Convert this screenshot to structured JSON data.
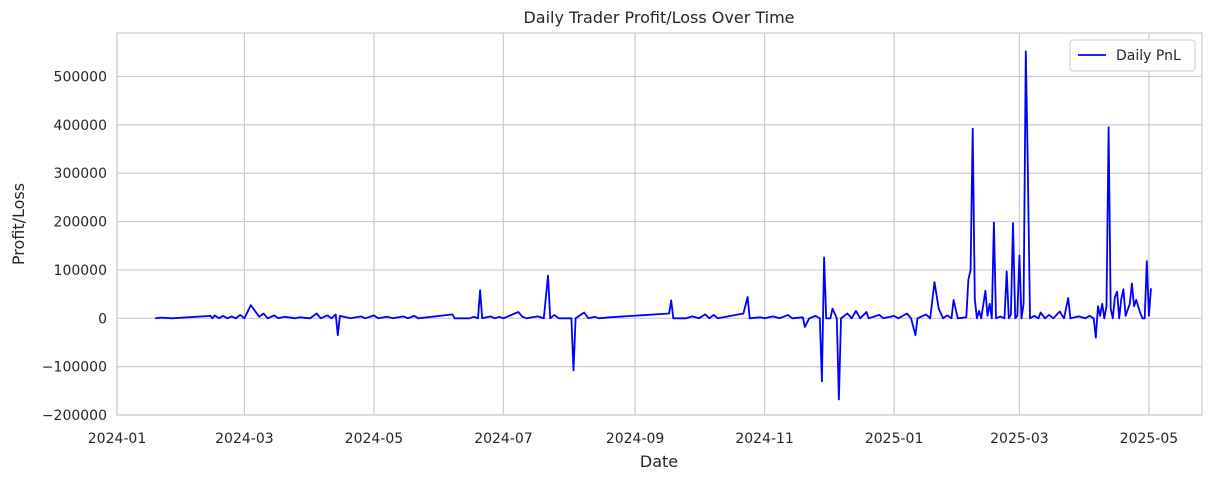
{
  "chart_data": {
    "type": "line",
    "title": "Daily Trader Profit/Loss Over Time",
    "xlabel": "Date",
    "ylabel": "Profit/Loss",
    "xlim": [
      "2024-01-01",
      "2025-05-26"
    ],
    "ylim": [
      -200000,
      590000
    ],
    "x_ticks": [
      "2024-01",
      "2024-03",
      "2024-05",
      "2024-07",
      "2024-09",
      "2024-11",
      "2025-01",
      "2025-03",
      "2025-05"
    ],
    "y_ticks": [
      -200000,
      -100000,
      0,
      100000,
      200000,
      300000,
      400000,
      500000
    ],
    "y_tick_labels": [
      "−200000",
      "−100000",
      "0",
      "100000",
      "200000",
      "300000",
      "400000",
      "500000"
    ],
    "grid": true,
    "legend_position": "top-right",
    "colors": {
      "line": "#0000ff",
      "grid": "#cccccc",
      "frame": "#cccccc"
    },
    "series": [
      {
        "name": "Daily PnL",
        "points": [
          [
            "2024-01-19",
            0
          ],
          [
            "2024-01-22",
            1500
          ],
          [
            "2024-01-27",
            0
          ],
          [
            "2024-02-14",
            5000
          ],
          [
            "2024-02-15",
            0
          ],
          [
            "2024-02-16",
            6000
          ],
          [
            "2024-02-18",
            0
          ],
          [
            "2024-02-20",
            5000
          ],
          [
            "2024-02-22",
            0
          ],
          [
            "2024-02-24",
            4000
          ],
          [
            "2024-02-26",
            0
          ],
          [
            "2024-02-28",
            7000
          ],
          [
            "2024-03-01",
            0
          ],
          [
            "2024-03-04",
            27000
          ],
          [
            "2024-03-06",
            15000
          ],
          [
            "2024-03-08",
            3000
          ],
          [
            "2024-03-10",
            10000
          ],
          [
            "2024-03-12",
            0
          ],
          [
            "2024-03-15",
            6000
          ],
          [
            "2024-03-17",
            0
          ],
          [
            "2024-03-20",
            3000
          ],
          [
            "2024-03-25",
            0
          ],
          [
            "2024-03-27",
            2000
          ],
          [
            "2024-04-01",
            0
          ],
          [
            "2024-04-04",
            10000
          ],
          [
            "2024-04-06",
            0
          ],
          [
            "2024-04-09",
            6000
          ],
          [
            "2024-04-11",
            0
          ],
          [
            "2024-04-13",
            8000
          ],
          [
            "2024-04-14",
            -35000
          ],
          [
            "2024-04-15",
            5000
          ],
          [
            "2024-04-20",
            0
          ],
          [
            "2024-04-25",
            4000
          ],
          [
            "2024-04-27",
            0
          ],
          [
            "2024-05-01",
            6000
          ],
          [
            "2024-05-03",
            0
          ],
          [
            "2024-05-07",
            3000
          ],
          [
            "2024-05-10",
            0
          ],
          [
            "2024-05-15",
            4000
          ],
          [
            "2024-05-17",
            0
          ],
          [
            "2024-05-20",
            5000
          ],
          [
            "2024-05-22",
            0
          ],
          [
            "2024-06-07",
            8000
          ],
          [
            "2024-06-08",
            0
          ],
          [
            "2024-06-15",
            0
          ],
          [
            "2024-06-17",
            3000
          ],
          [
            "2024-06-19",
            0
          ],
          [
            "2024-06-20",
            58000
          ],
          [
            "2024-06-21",
            0
          ],
          [
            "2024-06-25",
            4000
          ],
          [
            "2024-06-27",
            0
          ],
          [
            "2024-06-29",
            3000
          ],
          [
            "2024-07-01",
            0
          ],
          [
            "2024-07-08",
            13000
          ],
          [
            "2024-07-10",
            3000
          ],
          [
            "2024-07-12",
            0
          ],
          [
            "2024-07-17",
            4000
          ],
          [
            "2024-07-20",
            0
          ],
          [
            "2024-07-22",
            88000
          ],
          [
            "2024-07-23",
            0
          ],
          [
            "2024-07-25",
            7000
          ],
          [
            "2024-07-27",
            0
          ],
          [
            "2024-08-02",
            0
          ],
          [
            "2024-08-03",
            -108000
          ],
          [
            "2024-08-04",
            0
          ],
          [
            "2024-08-08",
            12000
          ],
          [
            "2024-08-10",
            0
          ],
          [
            "2024-08-13",
            3000
          ],
          [
            "2024-08-15",
            0
          ],
          [
            "2024-08-20",
            2000
          ],
          [
            "2024-09-17",
            10000
          ],
          [
            "2024-09-18",
            37000
          ],
          [
            "2024-09-19",
            0
          ],
          [
            "2024-09-25",
            0
          ],
          [
            "2024-09-28",
            4000
          ],
          [
            "2024-10-01",
            0
          ],
          [
            "2024-10-04",
            8000
          ],
          [
            "2024-10-06",
            0
          ],
          [
            "2024-10-08",
            7000
          ],
          [
            "2024-10-10",
            0
          ],
          [
            "2024-10-22",
            10000
          ],
          [
            "2024-10-24",
            44000
          ],
          [
            "2024-10-25",
            0
          ],
          [
            "2024-10-30",
            2000
          ],
          [
            "2024-11-01",
            0
          ],
          [
            "2024-11-05",
            4000
          ],
          [
            "2024-11-08",
            0
          ],
          [
            "2024-11-12",
            7000
          ],
          [
            "2024-11-14",
            0
          ],
          [
            "2024-11-19",
            2000
          ],
          [
            "2024-11-20",
            -18000
          ],
          [
            "2024-11-22",
            0
          ],
          [
            "2024-11-25",
            5000
          ],
          [
            "2024-11-27",
            0
          ],
          [
            "2024-11-28",
            -130000
          ],
          [
            "2024-11-29",
            126000
          ],
          [
            "2024-11-30",
            0
          ],
          [
            "2024-12-02",
            0
          ],
          [
            "2024-12-03",
            20000
          ],
          [
            "2024-12-05",
            0
          ],
          [
            "2024-12-06",
            -168000
          ],
          [
            "2024-12-07",
            0
          ],
          [
            "2024-12-10",
            10000
          ],
          [
            "2024-12-12",
            0
          ],
          [
            "2024-12-14",
            15000
          ],
          [
            "2024-12-16",
            0
          ],
          [
            "2024-12-19",
            13000
          ],
          [
            "2024-12-20",
            0
          ],
          [
            "2024-12-25",
            7000
          ],
          [
            "2024-12-27",
            0
          ],
          [
            "2025-01-01",
            5000
          ],
          [
            "2025-01-03",
            0
          ],
          [
            "2025-01-07",
            10000
          ],
          [
            "2025-01-09",
            0
          ],
          [
            "2025-01-11",
            -35000
          ],
          [
            "2025-01-12",
            0
          ],
          [
            "2025-01-16",
            8000
          ],
          [
            "2025-01-18",
            0
          ],
          [
            "2025-01-20",
            75000
          ],
          [
            "2025-01-22",
            20000
          ],
          [
            "2025-01-24",
            0
          ],
          [
            "2025-01-26",
            6000
          ],
          [
            "2025-01-28",
            0
          ],
          [
            "2025-01-29",
            38000
          ],
          [
            "2025-01-31",
            0
          ],
          [
            "2025-02-04",
            2000
          ],
          [
            "2025-02-05",
            80000
          ],
          [
            "2025-02-06",
            100000
          ],
          [
            "2025-02-07",
            392000
          ],
          [
            "2025-02-08",
            40000
          ],
          [
            "2025-02-09",
            0
          ],
          [
            "2025-02-10",
            15000
          ],
          [
            "2025-02-11",
            0
          ],
          [
            "2025-02-13",
            57000
          ],
          [
            "2025-02-14",
            5000
          ],
          [
            "2025-02-15",
            30000
          ],
          [
            "2025-02-16",
            0
          ],
          [
            "2025-02-17",
            198000
          ],
          [
            "2025-02-18",
            0
          ],
          [
            "2025-02-20",
            4000
          ],
          [
            "2025-02-22",
            0
          ],
          [
            "2025-02-23",
            97000
          ],
          [
            "2025-02-24",
            0
          ],
          [
            "2025-02-25",
            8000
          ],
          [
            "2025-02-26",
            197000
          ],
          [
            "2025-02-27",
            0
          ],
          [
            "2025-02-28",
            5000
          ],
          [
            "2025-03-01",
            130000
          ],
          [
            "2025-03-02",
            0
          ],
          [
            "2025-03-03",
            30000
          ],
          [
            "2025-03-04",
            552000
          ],
          [
            "2025-03-05",
            300000
          ],
          [
            "2025-03-06",
            0
          ],
          [
            "2025-03-08",
            5000
          ],
          [
            "2025-03-10",
            0
          ],
          [
            "2025-03-11",
            12000
          ],
          [
            "2025-03-13",
            0
          ],
          [
            "2025-03-15",
            7000
          ],
          [
            "2025-03-17",
            0
          ],
          [
            "2025-03-20",
            14000
          ],
          [
            "2025-03-22",
            0
          ],
          [
            "2025-03-24",
            42000
          ],
          [
            "2025-03-25",
            0
          ],
          [
            "2025-03-29",
            4000
          ],
          [
            "2025-04-01",
            0
          ],
          [
            "2025-04-03",
            5000
          ],
          [
            "2025-04-05",
            0
          ],
          [
            "2025-04-06",
            -40000
          ],
          [
            "2025-04-07",
            25000
          ],
          [
            "2025-04-08",
            5000
          ],
          [
            "2025-04-09",
            30000
          ],
          [
            "2025-04-10",
            0
          ],
          [
            "2025-04-11",
            25000
          ],
          [
            "2025-04-12",
            395000
          ],
          [
            "2025-04-13",
            20000
          ],
          [
            "2025-04-14",
            0
          ],
          [
            "2025-04-15",
            44000
          ],
          [
            "2025-04-16",
            55000
          ],
          [
            "2025-04-17",
            0
          ],
          [
            "2025-04-18",
            40000
          ],
          [
            "2025-04-19",
            60000
          ],
          [
            "2025-04-20",
            5000
          ],
          [
            "2025-04-22",
            30000
          ],
          [
            "2025-04-23",
            72000
          ],
          [
            "2025-04-24",
            25000
          ],
          [
            "2025-04-25",
            38000
          ],
          [
            "2025-04-27",
            10000
          ],
          [
            "2025-04-28",
            0
          ],
          [
            "2025-04-29",
            0
          ],
          [
            "2025-04-30",
            118000
          ],
          [
            "2025-05-01",
            5000
          ],
          [
            "2025-05-02",
            62000
          ]
        ]
      }
    ]
  }
}
